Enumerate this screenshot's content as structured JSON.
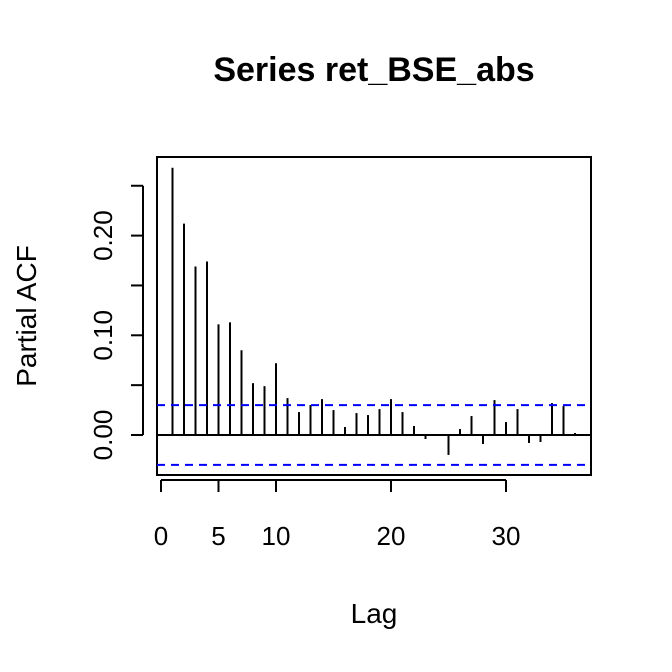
{
  "chart_data": {
    "type": "bar",
    "title": "Series  ret_BSE_abs",
    "xlabel": "Lag",
    "ylabel": "Partial ACF",
    "xlim": [
      0,
      37
    ],
    "ylim": [
      -0.04,
      0.28
    ],
    "x_ticks": [
      0,
      5,
      10,
      20,
      30
    ],
    "x_tick_labels": [
      "0",
      "5",
      "10",
      "20",
      "30"
    ],
    "y_ticks": [
      0.0,
      0.05,
      0.1,
      0.15,
      0.2,
      0.25
    ],
    "y_tick_labels": [
      "0.00",
      "0.10",
      "0.20"
    ],
    "y_tick_label_values": [
      0.0,
      0.1,
      0.2
    ],
    "confidence_bound": 0.03,
    "confidence_color": "#0000ff",
    "grid": false,
    "lags": [
      1,
      2,
      3,
      4,
      5,
      6,
      7,
      8,
      9,
      10,
      11,
      12,
      13,
      14,
      15,
      16,
      17,
      18,
      19,
      20,
      21,
      22,
      23,
      24,
      25,
      26,
      27,
      28,
      29,
      30,
      31,
      32,
      33,
      34,
      35,
      36
    ],
    "values": [
      0.268,
      0.212,
      0.169,
      0.174,
      0.111,
      0.113,
      0.085,
      0.052,
      0.049,
      0.072,
      0.037,
      0.023,
      0.03,
      0.036,
      0.025,
      0.008,
      0.022,
      0.02,
      0.026,
      0.036,
      0.023,
      0.009,
      -0.004,
      0.0,
      -0.02,
      0.006,
      0.019,
      -0.009,
      0.035,
      0.013,
      0.026,
      -0.008,
      -0.007,
      0.032,
      0.029,
      0.002
    ]
  }
}
